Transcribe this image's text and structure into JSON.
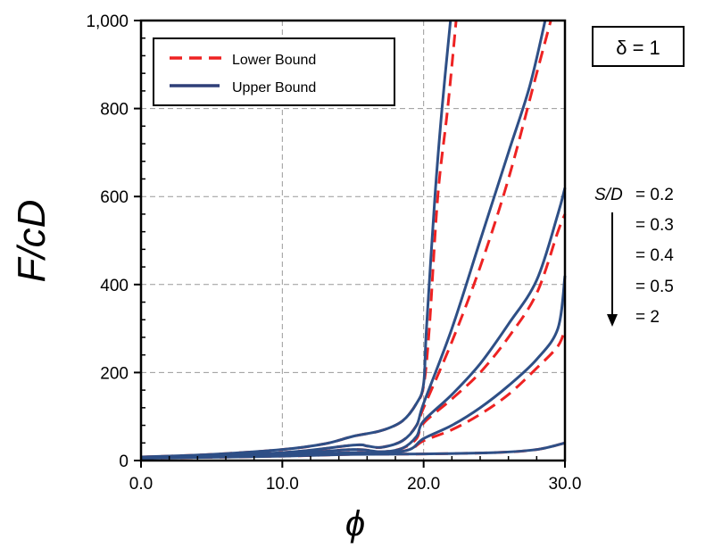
{
  "chart_data": {
    "type": "line",
    "title": "",
    "xlabel": "ϕ",
    "ylabel": "F/cD",
    "xlim": [
      0,
      30
    ],
    "ylim": [
      0,
      1000
    ],
    "xticks": [
      "0.0",
      "10.0",
      "20.0",
      "30.0"
    ],
    "yticks": [
      "0",
      "200",
      "400",
      "600",
      "800",
      "1,000"
    ],
    "grid": true,
    "legend": {
      "placement": "top-left",
      "entries": [
        {
          "label": "Lower Bound",
          "style": "dashed",
          "color": "#ee2222"
        },
        {
          "label": "Upper Bound",
          "style": "solid",
          "color": "#2e4f86"
        }
      ]
    },
    "annotation_box": "δ = 1",
    "param_labels": {
      "name": "S/D",
      "values": [
        "= 0.2",
        "= 0.3",
        "= 0.4",
        "= 0.5",
        "= 2"
      ]
    },
    "series": [
      {
        "name": "Upper Bound S/D=0.2",
        "bound": "upper",
        "x": [
          0,
          5,
          10,
          13,
          15,
          17,
          18.5,
          19.5,
          20,
          20.2,
          20.8,
          21.3,
          21.9
        ],
        "y": [
          8,
          14,
          25,
          38,
          55,
          68,
          90,
          130,
          175,
          300,
          600,
          800,
          1000
        ]
      },
      {
        "name": "Lower Bound S/D=0.2",
        "bound": "lower",
        "x": [
          0,
          5,
          10,
          13,
          15,
          17,
          18.5,
          19.5,
          20,
          20.4,
          21,
          21.7,
          22.3
        ],
        "y": [
          8,
          14,
          25,
          38,
          55,
          68,
          90,
          130,
          170,
          300,
          600,
          800,
          1000
        ]
      },
      {
        "name": "Upper Bound S/D=0.3",
        "bound": "upper",
        "x": [
          0,
          10,
          15,
          16,
          17,
          18.5,
          19.5,
          20,
          22,
          24,
          26,
          27.5,
          28.6
        ],
        "y": [
          5,
          18,
          35,
          33,
          30,
          45,
          80,
          130,
          300,
          500,
          700,
          850,
          1000
        ]
      },
      {
        "name": "Lower Bound S/D=0.3",
        "bound": "lower",
        "x": [
          0,
          10,
          15,
          16,
          17,
          18.5,
          19.5,
          20,
          22,
          24,
          26,
          28,
          29
        ],
        "y": [
          5,
          18,
          35,
          33,
          30,
          45,
          80,
          120,
          270,
          440,
          640,
          880,
          1000
        ]
      },
      {
        "name": "Upper Bound S/D=0.4",
        "bound": "upper",
        "x": [
          0,
          10,
          15,
          17,
          18.5,
          19.5,
          20,
          22,
          24,
          26,
          28,
          29.5,
          30
        ],
        "y": [
          5,
          15,
          25,
          20,
          28,
          55,
          90,
          150,
          220,
          310,
          410,
          560,
          620
        ]
      },
      {
        "name": "Lower Bound S/D=0.4",
        "bound": "lower",
        "x": [
          0,
          10,
          15,
          17,
          18.5,
          19.5,
          20,
          22,
          24,
          26,
          28,
          29.5,
          30
        ],
        "y": [
          5,
          15,
          25,
          20,
          28,
          50,
          85,
          140,
          200,
          280,
          380,
          520,
          560
        ]
      },
      {
        "name": "Upper Bound S/D=0.5",
        "bound": "upper",
        "x": [
          0,
          10,
          15,
          17,
          19,
          20,
          22,
          24,
          26,
          28,
          29.5,
          30
        ],
        "y": [
          5,
          12,
          18,
          16,
          25,
          50,
          80,
          120,
          170,
          230,
          300,
          420
        ]
      },
      {
        "name": "Lower Bound S/D=0.5",
        "bound": "lower",
        "x": [
          0,
          10,
          15,
          17,
          19,
          20,
          22,
          24,
          26,
          28,
          29.5,
          30
        ],
        "y": [
          5,
          12,
          18,
          16,
          25,
          45,
          70,
          105,
          150,
          210,
          260,
          300
        ]
      },
      {
        "name": "Upper Bound S/D=2",
        "bound": "upper",
        "x": [
          0,
          10,
          15,
          20,
          25,
          28,
          30
        ],
        "y": [
          5,
          10,
          14,
          15,
          18,
          25,
          40
        ]
      },
      {
        "name": "Lower Bound S/D=2",
        "bound": "lower",
        "x": [
          0,
          10,
          15,
          20,
          25,
          28,
          30
        ],
        "y": [
          5,
          10,
          14,
          15,
          18,
          25,
          40
        ]
      }
    ]
  }
}
